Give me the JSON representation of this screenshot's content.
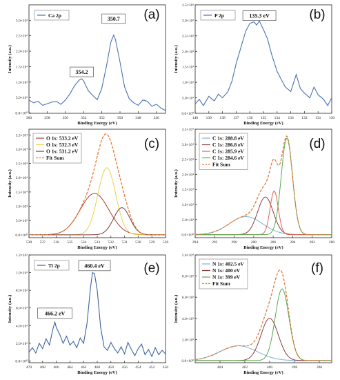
{
  "chart_data": [
    {
      "panel": "(a)",
      "type": "line",
      "xlabel": "Binding Energy (eV)",
      "ylabel": "Intensity (a.u.)",
      "xlim": [
        360,
        345
      ],
      "xticks": [
        360,
        358,
        356,
        354,
        352,
        350,
        348,
        346
      ],
      "ylim": [
        -10,
        3500
      ],
      "yticks": [
        0,
        500,
        1000,
        1500,
        2000,
        2500,
        3000
      ],
      "yticklabels": [
        "0.0×10⁰",
        "5.0×10²",
        "1.0×10³",
        "1.5×10³",
        "2.0×10³",
        "2.5×10³",
        "3.0×10³"
      ],
      "legend": [
        "Ca 2p"
      ],
      "annotations": [
        {
          "text": "354.2",
          "x": 354.2,
          "y": 1330
        },
        {
          "text": "350.7",
          "x": 350.7,
          "y": 3050
        }
      ],
      "series": [
        {
          "name": "Ca 2p",
          "color": "#4a72b0",
          "x": [
            360,
            359.5,
            359,
            358.5,
            358,
            357.5,
            357,
            356.5,
            356,
            355.5,
            355,
            354.5,
            354.2,
            354,
            353.5,
            353,
            352.5,
            352,
            351.5,
            351,
            350.7,
            350.5,
            350,
            349.5,
            349,
            348.5,
            348,
            347.5,
            347,
            346.5,
            346,
            345.5,
            345
          ],
          "y": [
            420,
            330,
            380,
            250,
            300,
            350,
            380,
            280,
            420,
            620,
            880,
            1060,
            1110,
            1040,
            730,
            570,
            430,
            800,
            1500,
            2300,
            2520,
            2380,
            1650,
            850,
            470,
            330,
            250,
            420,
            380,
            220,
            280,
            160,
            80
          ]
        }
      ]
    },
    {
      "panel": "(b)",
      "type": "line",
      "xlabel": "Binding Energy (eV)",
      "ylabel": "Intensity (a.u.)",
      "xlim": [
        140,
        130
      ],
      "xticks": [
        140,
        139,
        138,
        137,
        136,
        135,
        134,
        133,
        132,
        131,
        130
      ],
      "ylim": [
        0,
        3500
      ],
      "yticks": [
        0,
        500,
        1000,
        1500,
        2000,
        2500,
        3000,
        3500
      ],
      "yticklabels": [
        "0.0×10⁰",
        "5.0×10²",
        "1.0×10³",
        "1.5×10³",
        "2.0×10³",
        "2.5×10³",
        "3.0×10³",
        "3.5×10³"
      ],
      "legend": [
        "P 2p"
      ],
      "annotations": [
        {
          "text": "135.3 eV",
          "x": 135.3,
          "y": 3150
        }
      ],
      "series": [
        {
          "name": "P 2p",
          "color": "#4a72b0",
          "x": [
            140,
            139.7,
            139.4,
            139,
            138.6,
            138.3,
            138,
            137.6,
            137.3,
            137,
            136.6,
            136.3,
            136,
            135.7,
            135.5,
            135.3,
            135,
            134.7,
            134.4,
            134,
            133.7,
            133.4,
            133,
            132.6,
            132.3,
            132,
            131.6,
            131.3,
            131,
            130.6,
            130.3,
            130
          ],
          "y": [
            300,
            450,
            250,
            550,
            400,
            620,
            500,
            700,
            1050,
            1600,
            2200,
            2650,
            2900,
            2950,
            2850,
            2980,
            2700,
            2400,
            1900,
            1350,
            1100,
            850,
            700,
            1250,
            800,
            650,
            500,
            850,
            600,
            450,
            250,
            500
          ]
        }
      ]
    },
    {
      "panel": "(c)",
      "type": "line",
      "xlabel": "Binding Energy (eV)",
      "ylabel": "Intensity (a.u.)",
      "xlim": [
        538,
        528
      ],
      "xticks": [
        538,
        537,
        536,
        535,
        534,
        533,
        532,
        531,
        530,
        529,
        528
      ],
      "ylim": [
        -1000,
        37000
      ],
      "yticks": [
        0,
        5000,
        10000,
        15000,
        20000,
        25000,
        30000,
        35000
      ],
      "yticklabels": [
        "0.0×10⁰",
        "5.0×10³",
        "1.0×10⁴",
        "1.5×10⁴",
        "2.0×10⁴",
        "2.5×10⁴",
        "3.0×10⁴",
        "3.5×10⁴"
      ],
      "legend": [
        "O 1s: 533.2 eV",
        "O 1s: 532.3 eV",
        "O 1s: 531.2 eV",
        "Fit Sum"
      ],
      "peaks": [
        {
          "name": "O 1s: 533.2 eV",
          "center": 533.2,
          "height": 14500,
          "sigma": 1.05,
          "color": "#b03a32"
        },
        {
          "name": "O 1s: 532.3 eV",
          "center": 532.3,
          "height": 23500,
          "sigma": 0.65,
          "color": "#e8d24a"
        },
        {
          "name": "O 1s: 531.2 eV",
          "center": 531.2,
          "height": 9500,
          "sigma": 0.6,
          "color": "#7a3838"
        }
      ],
      "fit": {
        "name": "Fit Sum",
        "color": "#e07a3a"
      }
    },
    {
      "panel": "(d)",
      "type": "line",
      "xlabel": "Binding Energy (eV)",
      "ylabel": "Intensity (a.u.)",
      "xlim": [
        294,
        280
      ],
      "xticks": [
        294,
        292,
        290,
        288,
        286,
        284,
        282,
        280
      ],
      "ylim": [
        -1000,
        35000
      ],
      "yticks": [
        0,
        5000,
        10000,
        15000,
        20000,
        25000,
        30000,
        35000
      ],
      "yticklabels": [
        "0.0×10⁰",
        "5.0×10³",
        "1.0×10⁴",
        "1.5×10⁴",
        "2.0×10⁴",
        "2.5×10⁴",
        "3.0×10⁴",
        "3.5×10⁴"
      ],
      "legend": [
        "C 1s: 288.8 eV",
        "C 1s: 286.8 eV",
        "C 1s: 285.9 eV",
        "C 1s: 284.6 eV",
        "Fit Sum"
      ],
      "peaks": [
        {
          "name": "C 1s: 288.8 eV",
          "center": 288.8,
          "height": 6000,
          "sigma": 1.7,
          "color": "#7ab0d8"
        },
        {
          "name": "C 1s: 286.8 eV",
          "center": 286.8,
          "height": 12500,
          "sigma": 0.8,
          "color": "#8a3a3a"
        },
        {
          "name": "C 1s: 285.9 eV",
          "center": 285.9,
          "height": 14500,
          "sigma": 0.42,
          "color": "#e06050"
        },
        {
          "name": "C 1s: 284.6 eV",
          "center": 284.6,
          "height": 32000,
          "sigma": 0.58,
          "color": "#5aa84a"
        }
      ],
      "fit": {
        "name": "Fit Sum",
        "color": "#e07a3a"
      }
    },
    {
      "panel": "(e)",
      "type": "line",
      "xlabel": "Binding Energy (eV)",
      "ylabel": "Intensity (a.u.)",
      "xlim": [
        470,
        450
      ],
      "xticks": [
        470,
        468,
        466,
        464,
        462,
        460,
        458,
        456,
        454,
        452,
        450
      ],
      "ylim": [
        -20,
        1200
      ],
      "yticks": [
        0,
        200,
        400,
        600,
        800,
        1000,
        1200
      ],
      "yticklabels": [
        "0.0×10⁰",
        "2.0×10²",
        "4.0×10²",
        "6.0×10²",
        "8.0×10²",
        "1.0×10³",
        "1.2×10³"
      ],
      "legend": [
        "Ti 2p"
      ],
      "annotations": [
        {
          "text": "466.2 eV",
          "x": 466.2,
          "y": 540
        },
        {
          "text": "460.4 eV",
          "x": 460.4,
          "y": 1080
        }
      ],
      "series": [
        {
          "name": "Ti 2p",
          "color": "#3a62a0",
          "x": [
            470,
            469.5,
            469,
            468.5,
            468,
            467.5,
            467,
            466.5,
            466.2,
            466,
            465.5,
            465,
            464.5,
            464,
            463.5,
            463,
            462.5,
            462,
            461.5,
            461,
            460.7,
            460.4,
            460,
            459.5,
            459,
            458.5,
            458,
            457.5,
            457,
            456.5,
            456,
            455.5,
            455,
            454.5,
            454,
            453.5,
            453,
            452.5,
            452,
            451.5,
            451,
            450.5,
            450
          ],
          "y": [
            100,
            150,
            90,
            200,
            140,
            250,
            180,
            360,
            440,
            380,
            300,
            200,
            280,
            180,
            220,
            150,
            260,
            200,
            420,
            820,
            1000,
            990,
            800,
            380,
            160,
            120,
            210,
            140,
            90,
            160,
            80,
            210,
            130,
            60,
            140,
            190,
            70,
            130,
            50,
            150,
            70,
            120,
            80
          ]
        }
      ]
    },
    {
      "panel": "(f)",
      "type": "line",
      "xlabel": "Binding Energy (eV)",
      "ylabel": "Intensity (a.u.)",
      "xlim": [
        406,
        395
      ],
      "xticks": [
        404,
        402,
        400,
        398,
        396
      ],
      "ylim": [
        -200,
        10000
      ],
      "yticks": [
        0,
        2000,
        4000,
        6000,
        8000,
        10000
      ],
      "yticklabels": [
        "0.0×10⁰",
        "2.0×10³",
        "4.0×10³",
        "6.0×10³",
        "8.0×10³",
        "1.0×10⁴"
      ],
      "legend": [
        "N 1s: 402.5 eV",
        "N 1s: 400 eV",
        "N 1s: 399 eV",
        "Fit Sum"
      ],
      "peaks": [
        {
          "name": "N 1s: 402.5 eV",
          "center": 402.5,
          "height": 1400,
          "sigma": 1.5,
          "color": "#7ab0d8"
        },
        {
          "name": "N 1s: 400 eV",
          "center": 400.0,
          "height": 4000,
          "sigma": 0.7,
          "color": "#8a3a3a"
        },
        {
          "name": "N 1s: 399 eV",
          "center": 399.0,
          "height": 6800,
          "sigma": 0.55,
          "color": "#5aa84a"
        }
      ],
      "fit": {
        "name": "Fit Sum",
        "color": "#e07a3a"
      }
    }
  ]
}
